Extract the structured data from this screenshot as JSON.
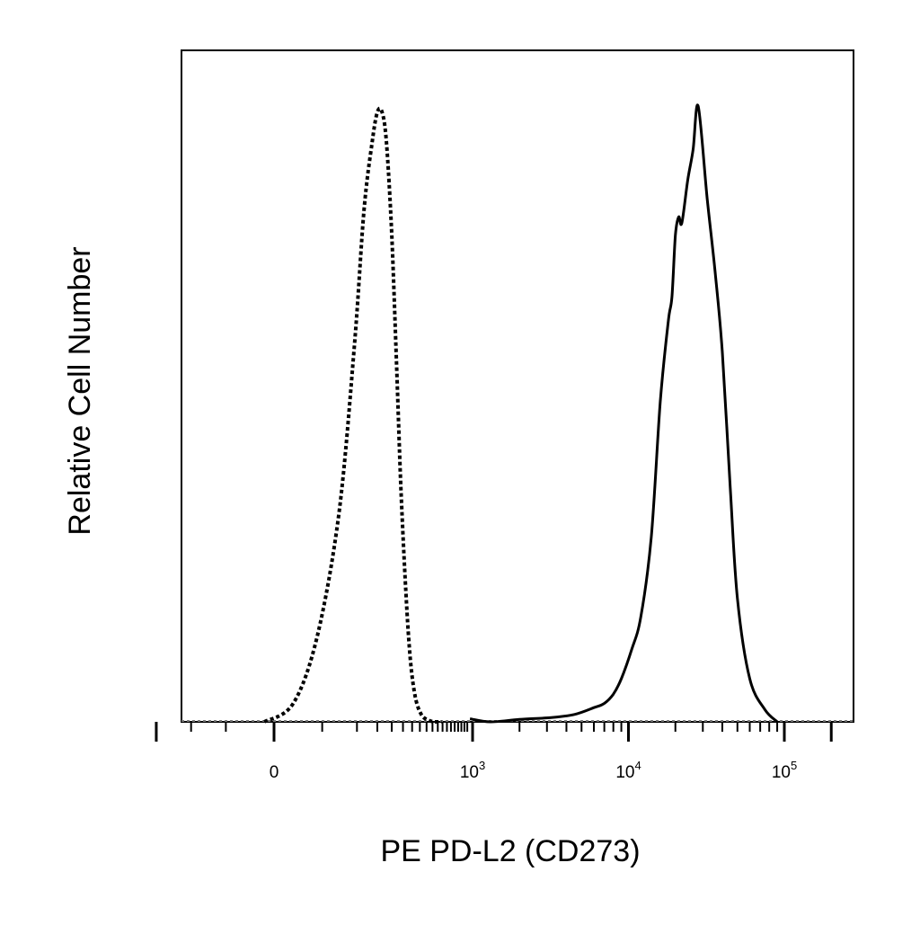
{
  "chart_data": {
    "type": "line",
    "title": "",
    "xlabel": "PE PD-L2 (CD273)",
    "ylabel": "Relative Cell Number",
    "x_scale": "biexponential",
    "xlim": [
      -250,
      250000
    ],
    "ylim": [
      0,
      100
    ],
    "grid": false,
    "legend": "none",
    "x_ticks": [
      {
        "value": 0,
        "base": "0",
        "exp": ""
      },
      {
        "value": 1000,
        "base": "10",
        "exp": "3"
      },
      {
        "value": 10000,
        "base": "10",
        "exp": "4"
      },
      {
        "value": 100000,
        "base": "10",
        "exp": "5"
      }
    ],
    "series": [
      {
        "style": "dotted",
        "color": "#000000",
        "x": [
          -10,
          20,
          45,
          70,
          95,
          115,
          135,
          150,
          165,
          180,
          200,
          220,
          240,
          265,
          290,
          320,
          360,
          410,
          470,
          540
        ],
        "y": [
          0,
          3,
          14,
          34,
          61,
          83,
          94,
          99,
          99,
          94,
          79,
          58,
          38,
          21,
          10,
          4,
          1.2,
          0.3,
          0,
          0
        ]
      },
      {
        "style": "solid",
        "color": "#000000",
        "x": [
          950,
          1300,
          2000,
          3200,
          4500,
          6000,
          7000,
          8000,
          9000,
          10500,
          12000,
          14000,
          16000,
          18000,
          19000,
          20000,
          21000,
          22000,
          24000,
          26000,
          28000,
          32000,
          36000,
          40000,
          45000,
          50000,
          60000,
          75000,
          90000
        ],
        "y": [
          0.5,
          0,
          0.4,
          0.7,
          1.2,
          2.3,
          3,
          4.5,
          7,
          11.8,
          17,
          30,
          52,
          65,
          69,
          79,
          82,
          81,
          88,
          93,
          100,
          85,
          73,
          60,
          38,
          20,
          7,
          2,
          0
        ]
      }
    ]
  }
}
